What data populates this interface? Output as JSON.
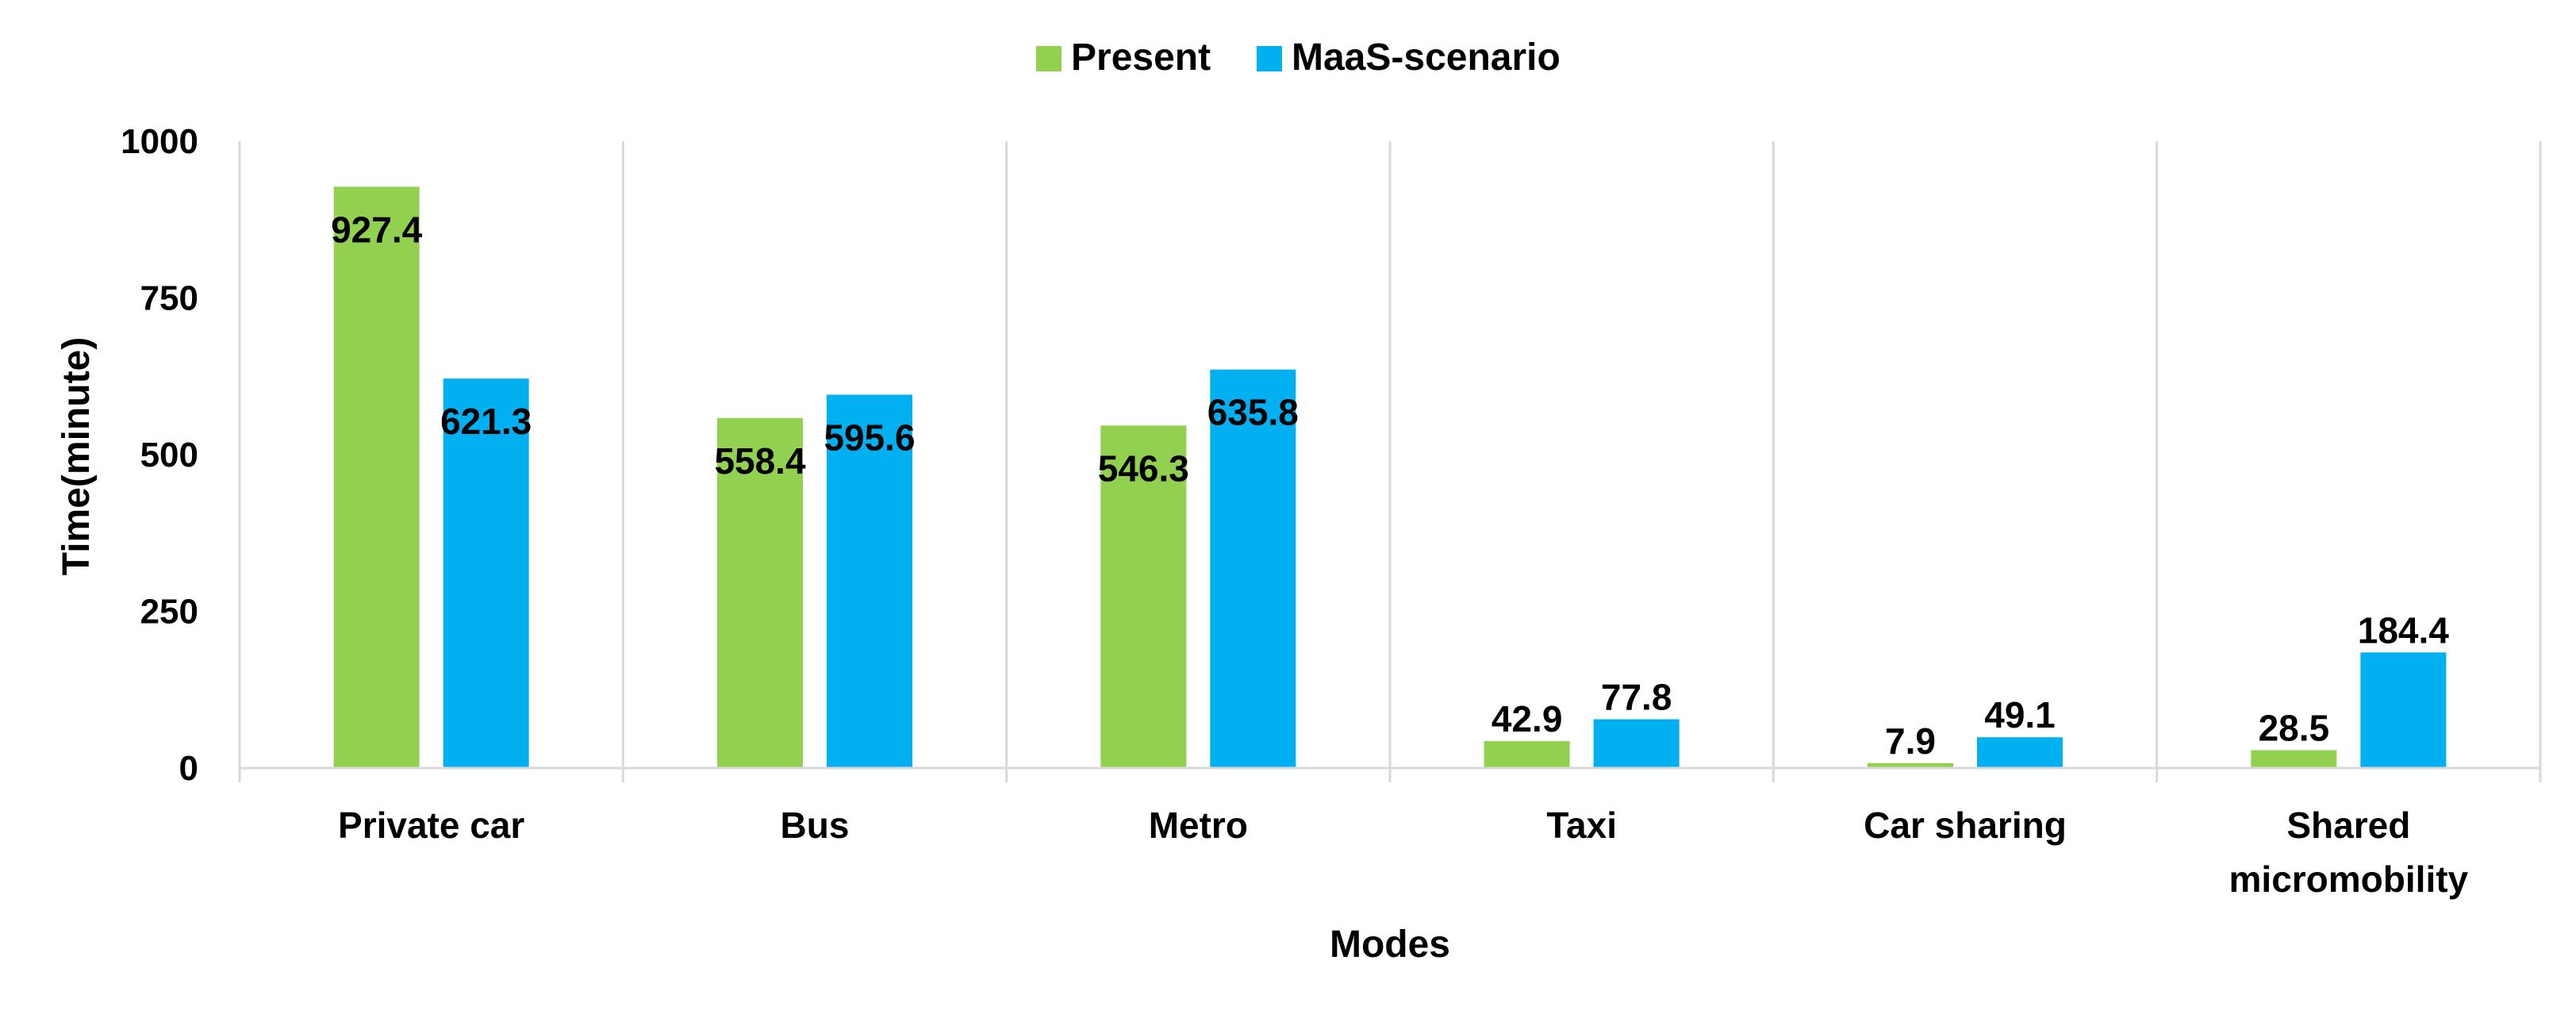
{
  "chart_data": {
    "type": "bar",
    "categories": [
      "Private car",
      "Bus",
      "Metro",
      "Taxi",
      "Car sharing",
      "Shared micromobility"
    ],
    "category_lines": [
      [
        "Private car"
      ],
      [
        "Bus"
      ],
      [
        "Metro"
      ],
      [
        "Taxi"
      ],
      [
        "Car sharing"
      ],
      [
        "Shared",
        "micromobility"
      ]
    ],
    "series": [
      {
        "name": "Present",
        "color": "#92d050",
        "values": [
          927.4,
          558.4,
          546.3,
          42.9,
          7.9,
          28.5
        ]
      },
      {
        "name": "MaaS-scenario",
        "color": "#00b0f0",
        "values": [
          621.3,
          595.6,
          635.8,
          77.8,
          49.1,
          184.4
        ]
      }
    ],
    "data_labels": [
      [
        "927.4",
        "558.4",
        "546.3",
        "42.9",
        "7.9",
        "28.5"
      ],
      [
        "621.3",
        "595.6",
        "635.8",
        "77.8",
        "49.1",
        "184.4"
      ]
    ],
    "title": "",
    "xlabel": "Modes",
    "ylabel": "Time(minute)",
    "ylim": [
      0,
      1000
    ],
    "yticks": [
      0,
      250,
      500,
      750,
      1000
    ],
    "grid": "vertical category separators",
    "legend": "top-center"
  }
}
